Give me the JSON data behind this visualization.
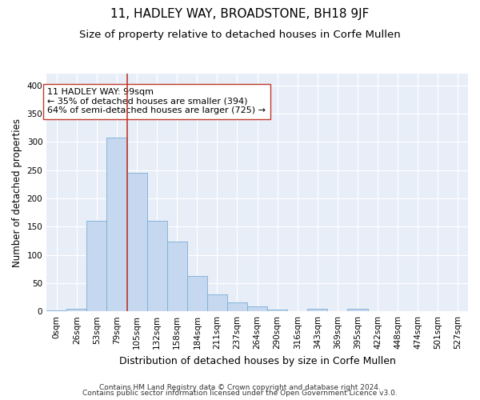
{
  "title": "11, HADLEY WAY, BROADSTONE, BH18 9JF",
  "subtitle": "Size of property relative to detached houses in Corfe Mullen",
  "xlabel": "Distribution of detached houses by size in Corfe Mullen",
  "ylabel": "Number of detached properties",
  "footnote1": "Contains HM Land Registry data © Crown copyright and database right 2024.",
  "footnote2": "Contains public sector information licensed under the Open Government Licence v3.0.",
  "bar_labels": [
    "0sqm",
    "26sqm",
    "53sqm",
    "79sqm",
    "105sqm",
    "132sqm",
    "158sqm",
    "184sqm",
    "211sqm",
    "237sqm",
    "264sqm",
    "290sqm",
    "316sqm",
    "343sqm",
    "369sqm",
    "395sqm",
    "422sqm",
    "448sqm",
    "474sqm",
    "501sqm",
    "527sqm"
  ],
  "bar_values": [
    2,
    5,
    160,
    308,
    245,
    160,
    123,
    63,
    30,
    16,
    9,
    3,
    0,
    4,
    0,
    4,
    0,
    0,
    0,
    0,
    0
  ],
  "bar_color": "#c5d8ef",
  "bar_edge_color": "#7aaed4",
  "ylim": [
    0,
    420
  ],
  "yticks": [
    0,
    50,
    100,
    150,
    200,
    250,
    300,
    350,
    400
  ],
  "vline_x": 4,
  "vline_color": "#c0392b",
  "annotation_text": "11 HADLEY WAY: 99sqm\n← 35% of detached houses are smaller (394)\n64% of semi-detached houses are larger (725) →",
  "annotation_box_color": "#ffffff",
  "annotation_box_edge": "#c0392b",
  "bg_color": "#e8eef8",
  "grid_color": "#ffffff",
  "title_fontsize": 11,
  "subtitle_fontsize": 9.5,
  "xlabel_fontsize": 9,
  "ylabel_fontsize": 8.5,
  "tick_fontsize": 7.5,
  "annotation_fontsize": 8,
  "footnote_fontsize": 6.5
}
